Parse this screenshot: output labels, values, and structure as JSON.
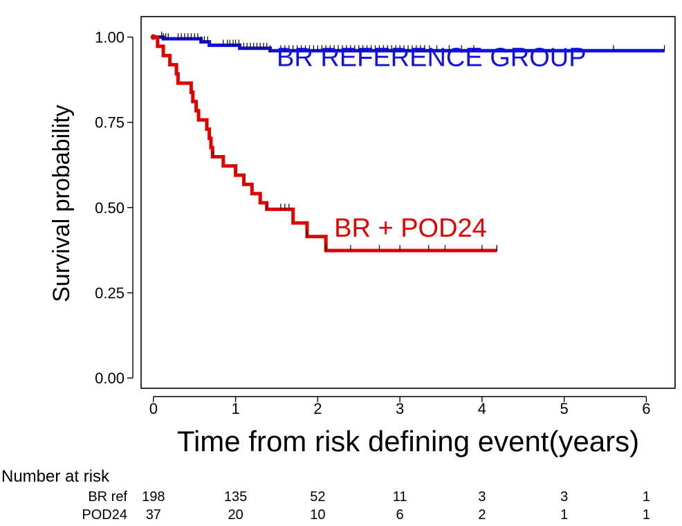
{
  "chart_data": {
    "type": "line",
    "subtype": "kaplan-meier",
    "xlabel": "Time from risk defining event(years)",
    "ylabel": "Survival probability",
    "xlim": [
      -0.15,
      6.35
    ],
    "ylim": [
      -0.03,
      1.06
    ],
    "x_ticks": [
      0,
      1,
      2,
      3,
      4,
      5,
      6
    ],
    "x_tick_labels": [
      "0",
      "1",
      "2",
      "3",
      "4",
      "5",
      "6"
    ],
    "y_ticks": [
      0,
      0.25,
      0.5,
      0.75,
      1.0
    ],
    "y_tick_labels": [
      "0.00",
      "0.25",
      "0.50",
      "0.75",
      "1.00"
    ],
    "grid": false,
    "series": [
      {
        "name": "BR REFERENCE GROUP",
        "color": "#1010e0",
        "label_pos": [
          1.5,
          0.915
        ],
        "steps": [
          [
            0,
            1.0
          ],
          [
            0.12,
            0.995
          ],
          [
            0.58,
            0.986
          ],
          [
            0.68,
            0.976
          ],
          [
            1.05,
            0.967
          ],
          [
            1.42,
            0.96
          ],
          [
            6.22,
            0.96
          ]
        ],
        "censor_times": [
          0.1,
          0.12,
          0.15,
          0.18,
          0.3,
          0.34,
          0.38,
          0.42,
          0.46,
          0.5,
          0.54,
          0.58,
          0.62,
          0.66,
          0.85,
          0.9,
          0.93,
          0.97,
          1.0,
          1.04,
          1.1,
          1.14,
          1.18,
          1.22,
          1.26,
          1.3,
          1.34,
          1.38,
          1.42,
          1.55,
          1.6,
          1.65,
          1.7,
          1.75,
          1.8,
          1.85,
          1.9,
          1.95,
          2.0,
          2.05,
          2.1,
          2.15,
          2.2,
          2.25,
          2.3,
          2.35,
          2.4,
          2.45,
          2.5,
          2.55,
          2.6,
          2.65,
          2.7,
          2.75,
          2.8,
          2.85,
          2.9,
          2.95,
          3.0,
          3.05,
          3.1,
          3.15,
          3.2,
          3.25,
          3.3,
          3.36,
          3.45,
          3.6,
          3.75,
          3.9,
          5.6,
          6.22
        ]
      },
      {
        "name": "BR + POD24",
        "color": "#e00000",
        "label_pos": [
          2.2,
          0.415
        ],
        "steps": [
          [
            0,
            1.0
          ],
          [
            0.05,
            0.973
          ],
          [
            0.12,
            0.946
          ],
          [
            0.2,
            0.919
          ],
          [
            0.28,
            0.892
          ],
          [
            0.3,
            0.865
          ],
          [
            0.46,
            0.838
          ],
          [
            0.48,
            0.811
          ],
          [
            0.52,
            0.784
          ],
          [
            0.55,
            0.757
          ],
          [
            0.65,
            0.73
          ],
          [
            0.68,
            0.703
          ],
          [
            0.7,
            0.676
          ],
          [
            0.72,
            0.649
          ],
          [
            0.85,
            0.622
          ],
          [
            1.0,
            0.595
          ],
          [
            1.1,
            0.568
          ],
          [
            1.2,
            0.541
          ],
          [
            1.3,
            0.514
          ],
          [
            1.38,
            0.495
          ],
          [
            1.7,
            0.455
          ],
          [
            1.87,
            0.415
          ],
          [
            2.1,
            0.374
          ],
          [
            4.18,
            0.374
          ]
        ],
        "censor_times": [
          0.73,
          1.38,
          1.55,
          1.6,
          1.65,
          1.87,
          2.1,
          2.4,
          2.75,
          3.0,
          3.35,
          3.55,
          4.0,
          4.18
        ]
      }
    ],
    "risk_table": {
      "title": "Number at risk",
      "times": [
        0,
        1,
        2,
        3,
        4,
        5,
        6
      ],
      "rows": [
        {
          "label": "BR ref",
          "values": [
            "198",
            "135",
            "52",
            "11",
            "3",
            "3",
            "1"
          ]
        },
        {
          "label": "POD24",
          "values": [
            "37",
            "20",
            "10",
            "6",
            "2",
            "1",
            "1"
          ]
        }
      ]
    }
  }
}
